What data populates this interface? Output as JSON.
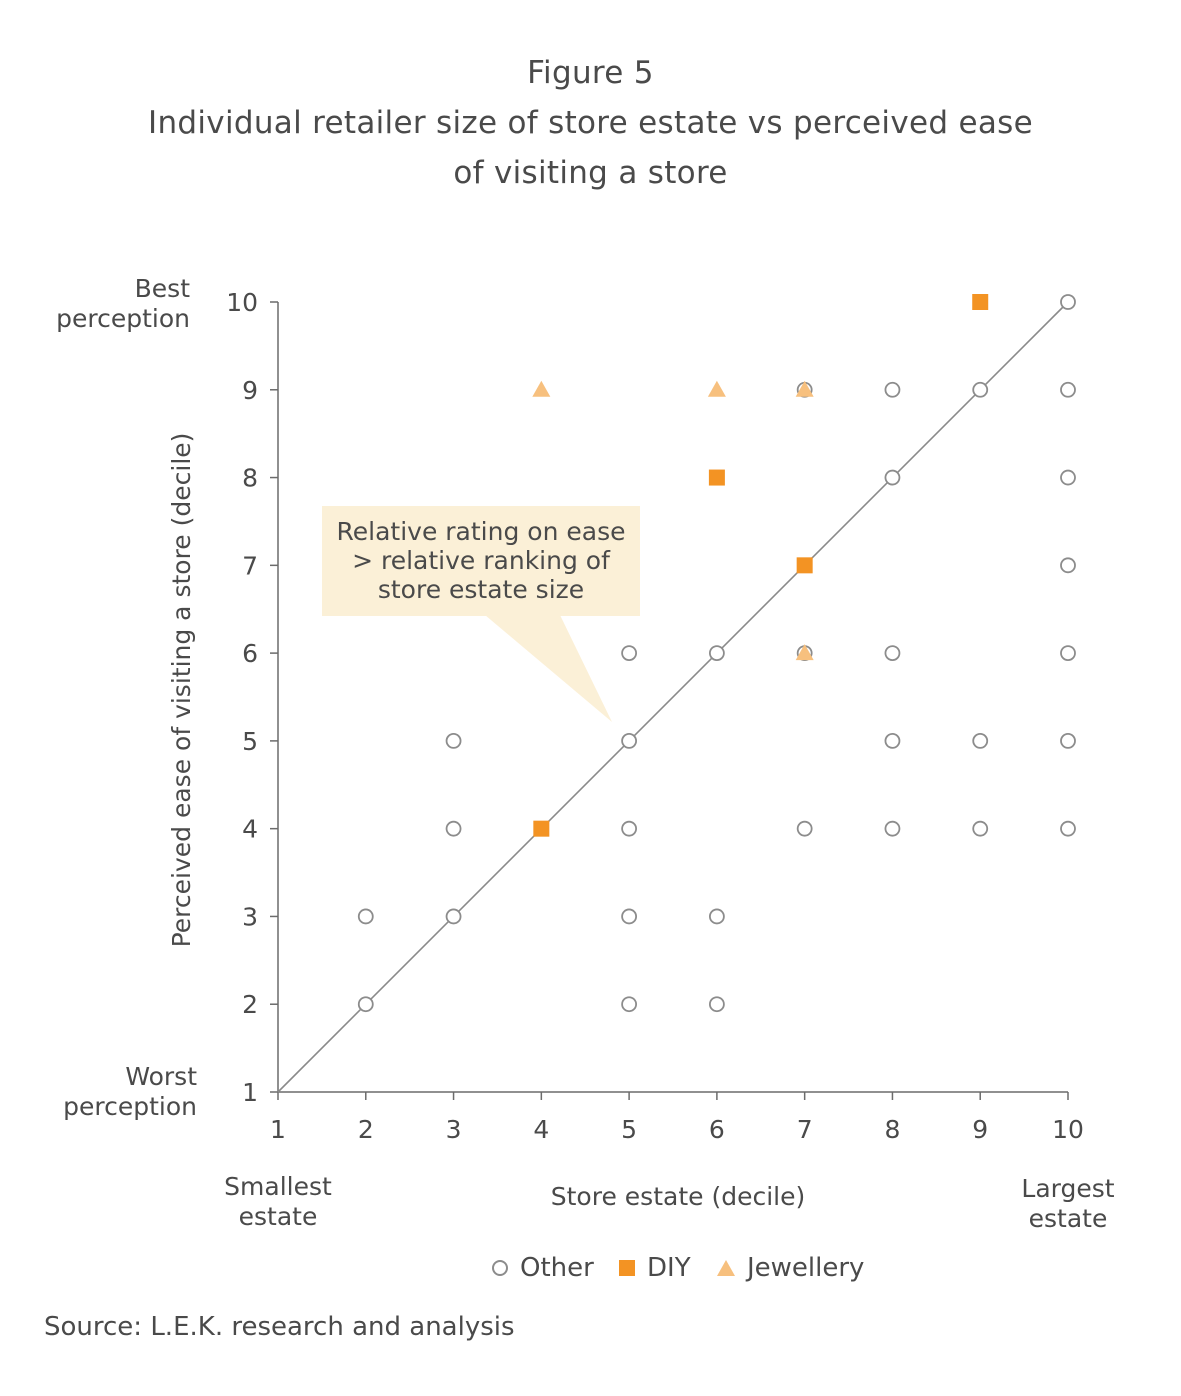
{
  "figure": {
    "label": "Figure 5",
    "title_line1": "Individual retailer size of store estate vs perceived ease",
    "title_line2": "of visiting a store",
    "source": "Source: L.E.K. research and analysis"
  },
  "annotations": {
    "y_top": [
      "Best",
      "perception"
    ],
    "y_bottom": [
      "Worst",
      "perception"
    ],
    "x_left": [
      "Smallest",
      "estate"
    ],
    "x_right": [
      "Largest",
      "estate"
    ],
    "callout": [
      "Relative rating on ease",
      "> relative ranking of",
      "store estate size"
    ]
  },
  "colors": {
    "other": "#8c8c8c",
    "diy": "#f39323",
    "jewellery": "#f7c07e",
    "axis": "#6b6b6b",
    "callout_bg": "#fbf0d7"
  },
  "chart_data": {
    "type": "scatter",
    "title": "Individual retailer size of store estate vs perceived ease of visiting a store",
    "xlabel": "Store estate (decile)",
    "ylabel": "Perceived ease of visiting a store (decile)",
    "xlim": [
      1,
      10
    ],
    "ylim": [
      1,
      10
    ],
    "xticks": [
      1,
      2,
      3,
      4,
      5,
      6,
      7,
      8,
      9,
      10
    ],
    "yticks": [
      1,
      2,
      3,
      4,
      5,
      6,
      7,
      8,
      9,
      10
    ],
    "grid": false,
    "legend_position": "bottom",
    "reference_line": {
      "from": [
        1,
        1
      ],
      "to": [
        10,
        10
      ]
    },
    "series": [
      {
        "name": "Other",
        "marker": "open-circle",
        "points": [
          [
            2,
            2
          ],
          [
            2,
            3
          ],
          [
            3,
            3
          ],
          [
            3,
            4
          ],
          [
            3,
            5
          ],
          [
            5,
            2
          ],
          [
            5,
            3
          ],
          [
            5,
            4
          ],
          [
            5,
            5
          ],
          [
            5,
            6
          ],
          [
            6,
            2
          ],
          [
            6,
            3
          ],
          [
            6,
            6
          ],
          [
            7,
            4
          ],
          [
            7,
            6
          ],
          [
            7,
            9
          ],
          [
            8,
            4
          ],
          [
            8,
            5
          ],
          [
            8,
            6
          ],
          [
            8,
            8
          ],
          [
            8,
            9
          ],
          [
            9,
            4
          ],
          [
            9,
            5
          ],
          [
            9,
            9
          ],
          [
            10,
            4
          ],
          [
            10,
            5
          ],
          [
            10,
            6
          ],
          [
            10,
            7
          ],
          [
            10,
            8
          ],
          [
            10,
            9
          ],
          [
            10,
            10
          ]
        ]
      },
      {
        "name": "DIY",
        "marker": "square",
        "points": [
          [
            4,
            4
          ],
          [
            6,
            8
          ],
          [
            7,
            7
          ],
          [
            9,
            10
          ]
        ]
      },
      {
        "name": "Jewellery",
        "marker": "triangle",
        "points": [
          [
            4,
            9
          ],
          [
            6,
            9
          ],
          [
            7,
            9
          ],
          [
            7,
            6
          ]
        ]
      }
    ]
  }
}
